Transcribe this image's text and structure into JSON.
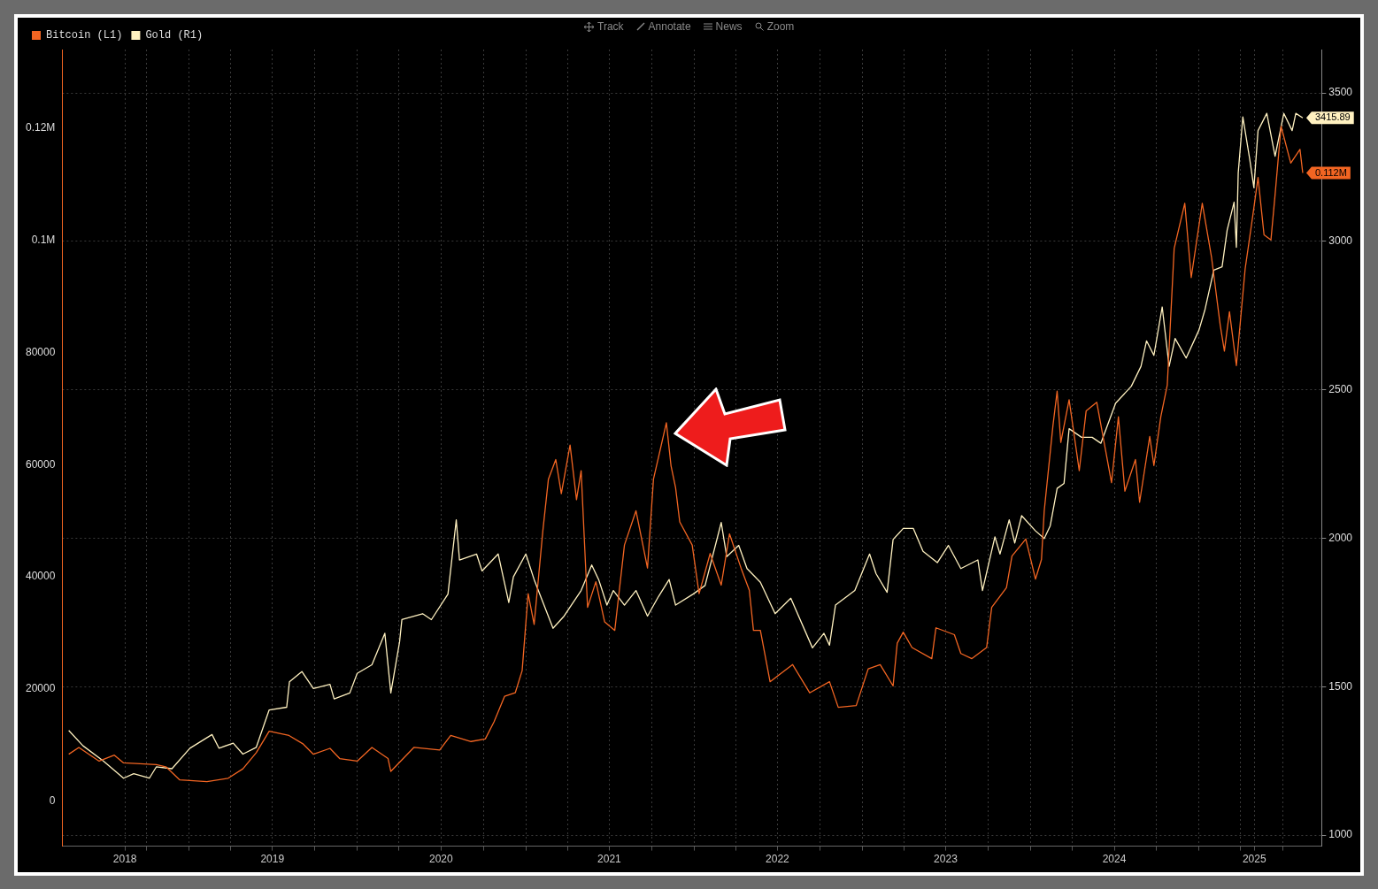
{
  "chart_data": {
    "type": "line",
    "annotations": [
      "Track",
      "Annotate",
      "News",
      "Zoom"
    ],
    "xlim": [
      "2018-04-01",
      "2025-09-24"
    ],
    "xticks": [
      {
        "value": "2018-08-15",
        "label": "2018"
      },
      {
        "value": "2018-10-01",
        "label": null
      },
      {
        "value": "2019-01-01",
        "label": null
      },
      {
        "value": "2019-04-01",
        "label": null
      },
      {
        "value": "2019-07-01",
        "label": "2019"
      },
      {
        "value": "2019-10-01",
        "label": null
      },
      {
        "value": "2020-01-01",
        "label": null
      },
      {
        "value": "2020-04-01",
        "label": null
      },
      {
        "value": "2020-07-01",
        "label": "2020"
      },
      {
        "value": "2020-10-01",
        "label": null
      },
      {
        "value": "2021-01-01",
        "label": null
      },
      {
        "value": "2021-04-01",
        "label": null
      },
      {
        "value": "2021-07-01",
        "label": "2021"
      },
      {
        "value": "2021-10-01",
        "label": null
      },
      {
        "value": "2022-01-01",
        "label": null
      },
      {
        "value": "2022-04-01",
        "label": null
      },
      {
        "value": "2022-07-01",
        "label": "2022"
      },
      {
        "value": "2022-10-01",
        "label": null
      },
      {
        "value": "2023-01-01",
        "label": null
      },
      {
        "value": "2023-04-01",
        "label": null
      },
      {
        "value": "2023-07-01",
        "label": "2023"
      },
      {
        "value": "2023-10-01",
        "label": null
      },
      {
        "value": "2024-01-01",
        "label": null
      },
      {
        "value": "2024-04-01",
        "label": null
      },
      {
        "value": "2024-07-01",
        "label": "2024"
      },
      {
        "value": "2024-10-01",
        "label": null
      },
      {
        "value": "2025-01-01",
        "label": null
      },
      {
        "value": "2025-04-01",
        "label": null
      },
      {
        "value": "2025-05-01",
        "label": "2025"
      },
      {
        "value": "2025-07-01",
        "label": null
      }
    ],
    "ylim": [
      -8000,
      134000
    ],
    "yticks": [
      0,
      20000,
      40000,
      60000,
      80000,
      {
        "value": 100000,
        "label": "0.1M"
      },
      {
        "value": 120000,
        "label": "0.12M"
      }
    ],
    "y2lim": [
      963,
      3646
    ],
    "y2ticks": [
      1000,
      1500,
      2000,
      2500,
      3000,
      3500
    ],
    "grid": true,
    "legend": "top left",
    "marker": "none",
    "line_style": "solid",
    "series": [
      {
        "name": "Bitcoin (L1)",
        "color": "#f26522",
        "axis": "y",
        "x": [
          "2018-04-15",
          "2018-05-07",
          "2018-06-20",
          "2018-07-23",
          "2018-08-12",
          "2018-10-22",
          "2018-11-13",
          "2018-12-12",
          "2019-02-09",
          "2019-03-27",
          "2019-04-28",
          "2019-05-27",
          "2019-06-24",
          "2019-08-06",
          "2019-09-06",
          "2019-09-28",
          "2019-11-03",
          "2019-11-24",
          "2020-01-01",
          "2020-02-02",
          "2020-03-08",
          "2020-03-14",
          "2020-05-03",
          "2020-06-28",
          "2020-07-22",
          "2020-09-04",
          "2020-10-05",
          "2020-10-24",
          "2020-11-16",
          "2020-12-09",
          "2020-12-24",
          "2021-01-06",
          "2021-01-19",
          "2021-02-07",
          "2021-02-19",
          "2021-03-07",
          "2021-03-19",
          "2021-04-07",
          "2021-04-21",
          "2021-05-01",
          "2021-05-10",
          "2021-05-15",
          "2021-06-02",
          "2021-06-21",
          "2021-07-13",
          "2021-08-03",
          "2021-08-28",
          "2021-09-22",
          "2021-10-05",
          "2021-11-02",
          "2021-11-12",
          "2021-11-22",
          "2021-12-01",
          "2021-12-28",
          "2022-01-12",
          "2022-02-05",
          "2022-03-01",
          "2022-03-19",
          "2022-04-13",
          "2022-05-01",
          "2022-05-10",
          "2022-05-25",
          "2022-06-15",
          "2022-08-03",
          "2022-09-09",
          "2022-10-22",
          "2022-11-10",
          "2022-12-19",
          "2023-01-14",
          "2023-02-09",
          "2023-03-09",
          "2023-03-18",
          "2023-03-31",
          "2023-04-19",
          "2023-06-01",
          "2023-06-10",
          "2023-07-20",
          "2023-08-03",
          "2023-08-27",
          "2023-09-28",
          "2023-10-09",
          "2023-11-10",
          "2023-11-22",
          "2023-12-22",
          "2024-01-12",
          "2024-01-25",
          "2024-01-31",
          "2024-02-19",
          "2024-02-28",
          "2024-03-07",
          "2024-03-25",
          "2024-04-16",
          "2024-05-01",
          "2024-05-24",
          "2024-06-25",
          "2024-07-10",
          "2024-07-24",
          "2024-08-16",
          "2024-08-25",
          "2024-09-16",
          "2024-09-25",
          "2024-10-10",
          "2024-10-24",
          "2024-11-08",
          "2024-12-01",
          "2024-12-15",
          "2025-01-08",
          "2025-01-28",
          "2025-02-16",
          "2025-02-25",
          "2025-03-08",
          "2025-03-23",
          "2025-04-11",
          "2025-04-28",
          "2025-05-09",
          "2025-05-22",
          "2025-06-06",
          "2025-06-15",
          "2025-06-28",
          "2025-07-19",
          "2025-08-08",
          "2025-08-14"
        ],
        "values": [
          8400,
          9600,
          7160,
          8220,
          6850,
          6550,
          6090,
          3810,
          3500,
          4110,
          5790,
          8680,
          12490,
          11730,
          10200,
          8380,
          9440,
          7620,
          7160,
          9600,
          7620,
          5330,
          9600,
          9140,
          11730,
          10660,
          11120,
          14160,
          18730,
          19340,
          23300,
          37010,
          31530,
          48280,
          57420,
          60920,
          54830,
          63510,
          53760,
          58940,
          43100,
          34570,
          39140,
          31980,
          30460,
          45690,
          51780,
          41580,
          57420,
          67470,
          59850,
          55890,
          49800,
          45690,
          37010,
          44170,
          38530,
          47670,
          41580,
          37620,
          30460,
          30460,
          21320,
          24370,
          19340,
          21320,
          16750,
          17060,
          23610,
          24370,
          20560,
          28180,
          30160,
          27410,
          25430,
          30920,
          29700,
          26350,
          25430,
          27410,
          34570,
          38080,
          43710,
          46760,
          39600,
          43100,
          51780,
          67010,
          73100,
          63970,
          71580,
          58940,
          69600,
          71120,
          56810,
          68540,
          55280,
          60920,
          53310,
          65030,
          59850,
          68540,
          74170,
          98540,
          106600,
          93360,
          106600,
          97020,
          84830,
          80260,
          87270,
          77670,
          94880,
          104600,
          111200,
          100970,
          100060,
          108130,
          120320,
          113770,
          116200,
          112000
        ],
        "value_labels": [
          null,
          null,
          null,
          null,
          null,
          null,
          null,
          null,
          null,
          null,
          null,
          null,
          null,
          null,
          null,
          null,
          null,
          null,
          null,
          null,
          null,
          null,
          null,
          null,
          null,
          null,
          null,
          null,
          null,
          null,
          null,
          null,
          null,
          null,
          null,
          null,
          null,
          null,
          null,
          null,
          null,
          null,
          null,
          null,
          null,
          null,
          null,
          null,
          null,
          null,
          null,
          null,
          null,
          null,
          null,
          null,
          null,
          null,
          null,
          null,
          null,
          null,
          null,
          null,
          null,
          null,
          null,
          null,
          null,
          null,
          null,
          null,
          null,
          null,
          null,
          null,
          null,
          null,
          null,
          null,
          null,
          null,
          null,
          null,
          null,
          null,
          null,
          null,
          null,
          null,
          null,
          null,
          null,
          null,
          null,
          null,
          null,
          null,
          null,
          null,
          null,
          null,
          null,
          null,
          null,
          null,
          null,
          null,
          null,
          null,
          null,
          null,
          null,
          null,
          null,
          null,
          null,
          null,
          null,
          null,
          null,
          "0.112M"
        ]
      },
      {
        "name": "Gold (R1)",
        "color": "#fff1c0",
        "axis": "y2",
        "x": [
          "2018-04-15",
          "2018-05-16",
          "2018-06-29",
          "2018-08-12",
          "2018-09-03",
          "2018-10-07",
          "2018-10-22",
          "2018-11-25",
          "2019-01-03",
          "2019-02-20",
          "2019-03-07",
          "2019-04-07",
          "2019-04-28",
          "2019-05-27",
          "2019-06-24",
          "2019-08-01",
          "2019-08-07",
          "2019-09-03",
          "2019-09-28",
          "2019-11-03",
          "2019-11-12",
          "2019-12-16",
          "2020-01-01",
          "2020-02-02",
          "2020-03-01",
          "2020-03-14",
          "2020-04-02",
          "2020-04-07",
          "2020-05-22",
          "2020-06-10",
          "2020-07-16",
          "2020-08-03",
          "2020-08-10",
          "2020-09-16",
          "2020-09-28",
          "2020-11-02",
          "2020-11-25",
          "2020-12-05",
          "2021-01-01",
          "2021-01-19",
          "2021-03-01",
          "2021-03-25",
          "2021-05-01",
          "2021-05-24",
          "2021-06-08",
          "2021-06-26",
          "2021-07-10",
          "2021-08-03",
          "2021-08-28",
          "2021-09-22",
          "2021-10-16",
          "2021-11-08",
          "2021-11-22",
          "2021-12-30",
          "2022-01-25",
          "2022-03-01",
          "2022-03-13",
          "2022-04-08",
          "2022-04-26",
          "2022-05-25",
          "2022-06-26",
          "2022-07-30",
          "2022-09-15",
          "2022-10-10",
          "2022-10-22",
          "2022-11-04",
          "2022-12-16",
          "2023-01-17",
          "2023-01-31",
          "2023-02-24",
          "2023-03-09",
          "2023-03-31",
          "2023-04-22",
          "2023-05-13",
          "2023-06-13",
          "2023-07-07",
          "2023-08-03",
          "2023-09-09",
          "2023-09-19",
          "2023-10-16",
          "2023-10-27",
          "2023-11-16",
          "2023-11-28",
          "2023-12-13",
          "2024-01-12",
          "2024-01-31",
          "2024-02-13",
          "2024-02-28",
          "2024-03-14",
          "2024-03-25",
          "2024-04-21",
          "2024-05-14",
          "2024-06-02",
          "2024-07-04",
          "2024-08-07",
          "2024-08-28",
          "2024-09-09",
          "2024-09-25",
          "2024-10-13",
          "2024-10-28",
          "2024-11-10",
          "2024-12-04",
          "2025-01-01",
          "2025-01-14",
          "2025-02-02",
          "2025-02-20",
          "2025-03-03",
          "2025-03-18",
          "2025-03-23",
          "2025-03-27",
          "2025-04-06",
          "2025-04-21",
          "2025-04-30",
          "2025-05-09",
          "2025-05-28",
          "2025-06-15",
          "2025-07-04",
          "2025-07-22",
          "2025-07-30",
          "2025-08-14"
        ],
        "values": [
          1353,
          1301,
          1250,
          1192,
          1207,
          1192,
          1230,
          1224,
          1293,
          1339,
          1293,
          1310,
          1273,
          1296,
          1422,
          1431,
          1517,
          1551,
          1494,
          1508,
          1459,
          1479,
          1545,
          1574,
          1680,
          1479,
          1651,
          1726,
          1746,
          1726,
          1812,
          2062,
          1927,
          1947,
          1890,
          1947,
          1784,
          1870,
          1947,
          1861,
          1697,
          1738,
          1824,
          1910,
          1861,
          1775,
          1824,
          1775,
          1824,
          1738,
          1804,
          1861,
          1775,
          1812,
          1841,
          2053,
          1938,
          1976,
          1898,
          1852,
          1746,
          1798,
          1631,
          1680,
          1640,
          1775,
          1824,
          1947,
          1881,
          1818,
          1996,
          2033,
          2033,
          1956,
          1918,
          1976,
          1898,
          1927,
          1824,
          2005,
          1947,
          2062,
          1984,
          2076,
          2025,
          1999,
          2042,
          2168,
          2185,
          2369,
          2340,
          2340,
          2320,
          2455,
          2512,
          2579,
          2665,
          2616,
          2779,
          2579,
          2673,
          2607,
          2702,
          2771,
          2903,
          2914,
          3038,
          3132,
          2980,
          3230,
          3419,
          3276,
          3181,
          3373,
          3431,
          3287,
          3431,
          3373,
          3431,
          3415.89
        ],
        "value_labels": [
          null,
          null,
          null,
          null,
          null,
          null,
          null,
          null,
          null,
          null,
          null,
          null,
          null,
          null,
          null,
          null,
          null,
          null,
          null,
          null,
          null,
          null,
          null,
          null,
          null,
          null,
          null,
          null,
          null,
          null,
          null,
          null,
          null,
          null,
          null,
          null,
          null,
          null,
          null,
          null,
          null,
          null,
          null,
          null,
          null,
          null,
          null,
          null,
          null,
          null,
          null,
          null,
          null,
          null,
          null,
          null,
          null,
          null,
          null,
          null,
          null,
          null,
          null,
          null,
          null,
          null,
          null,
          null,
          null,
          null,
          null,
          null,
          null,
          null,
          null,
          null,
          null,
          null,
          null,
          null,
          null,
          null,
          null,
          null,
          null,
          null,
          null,
          null,
          null,
          null,
          null,
          null,
          null,
          null,
          null,
          null,
          null,
          null,
          null,
          null,
          null,
          null,
          null,
          null,
          null,
          null,
          null,
          null,
          null,
          null,
          null,
          null,
          null,
          null,
          null,
          null,
          null,
          null,
          null,
          "3415.89"
        ]
      }
    ]
  }
}
